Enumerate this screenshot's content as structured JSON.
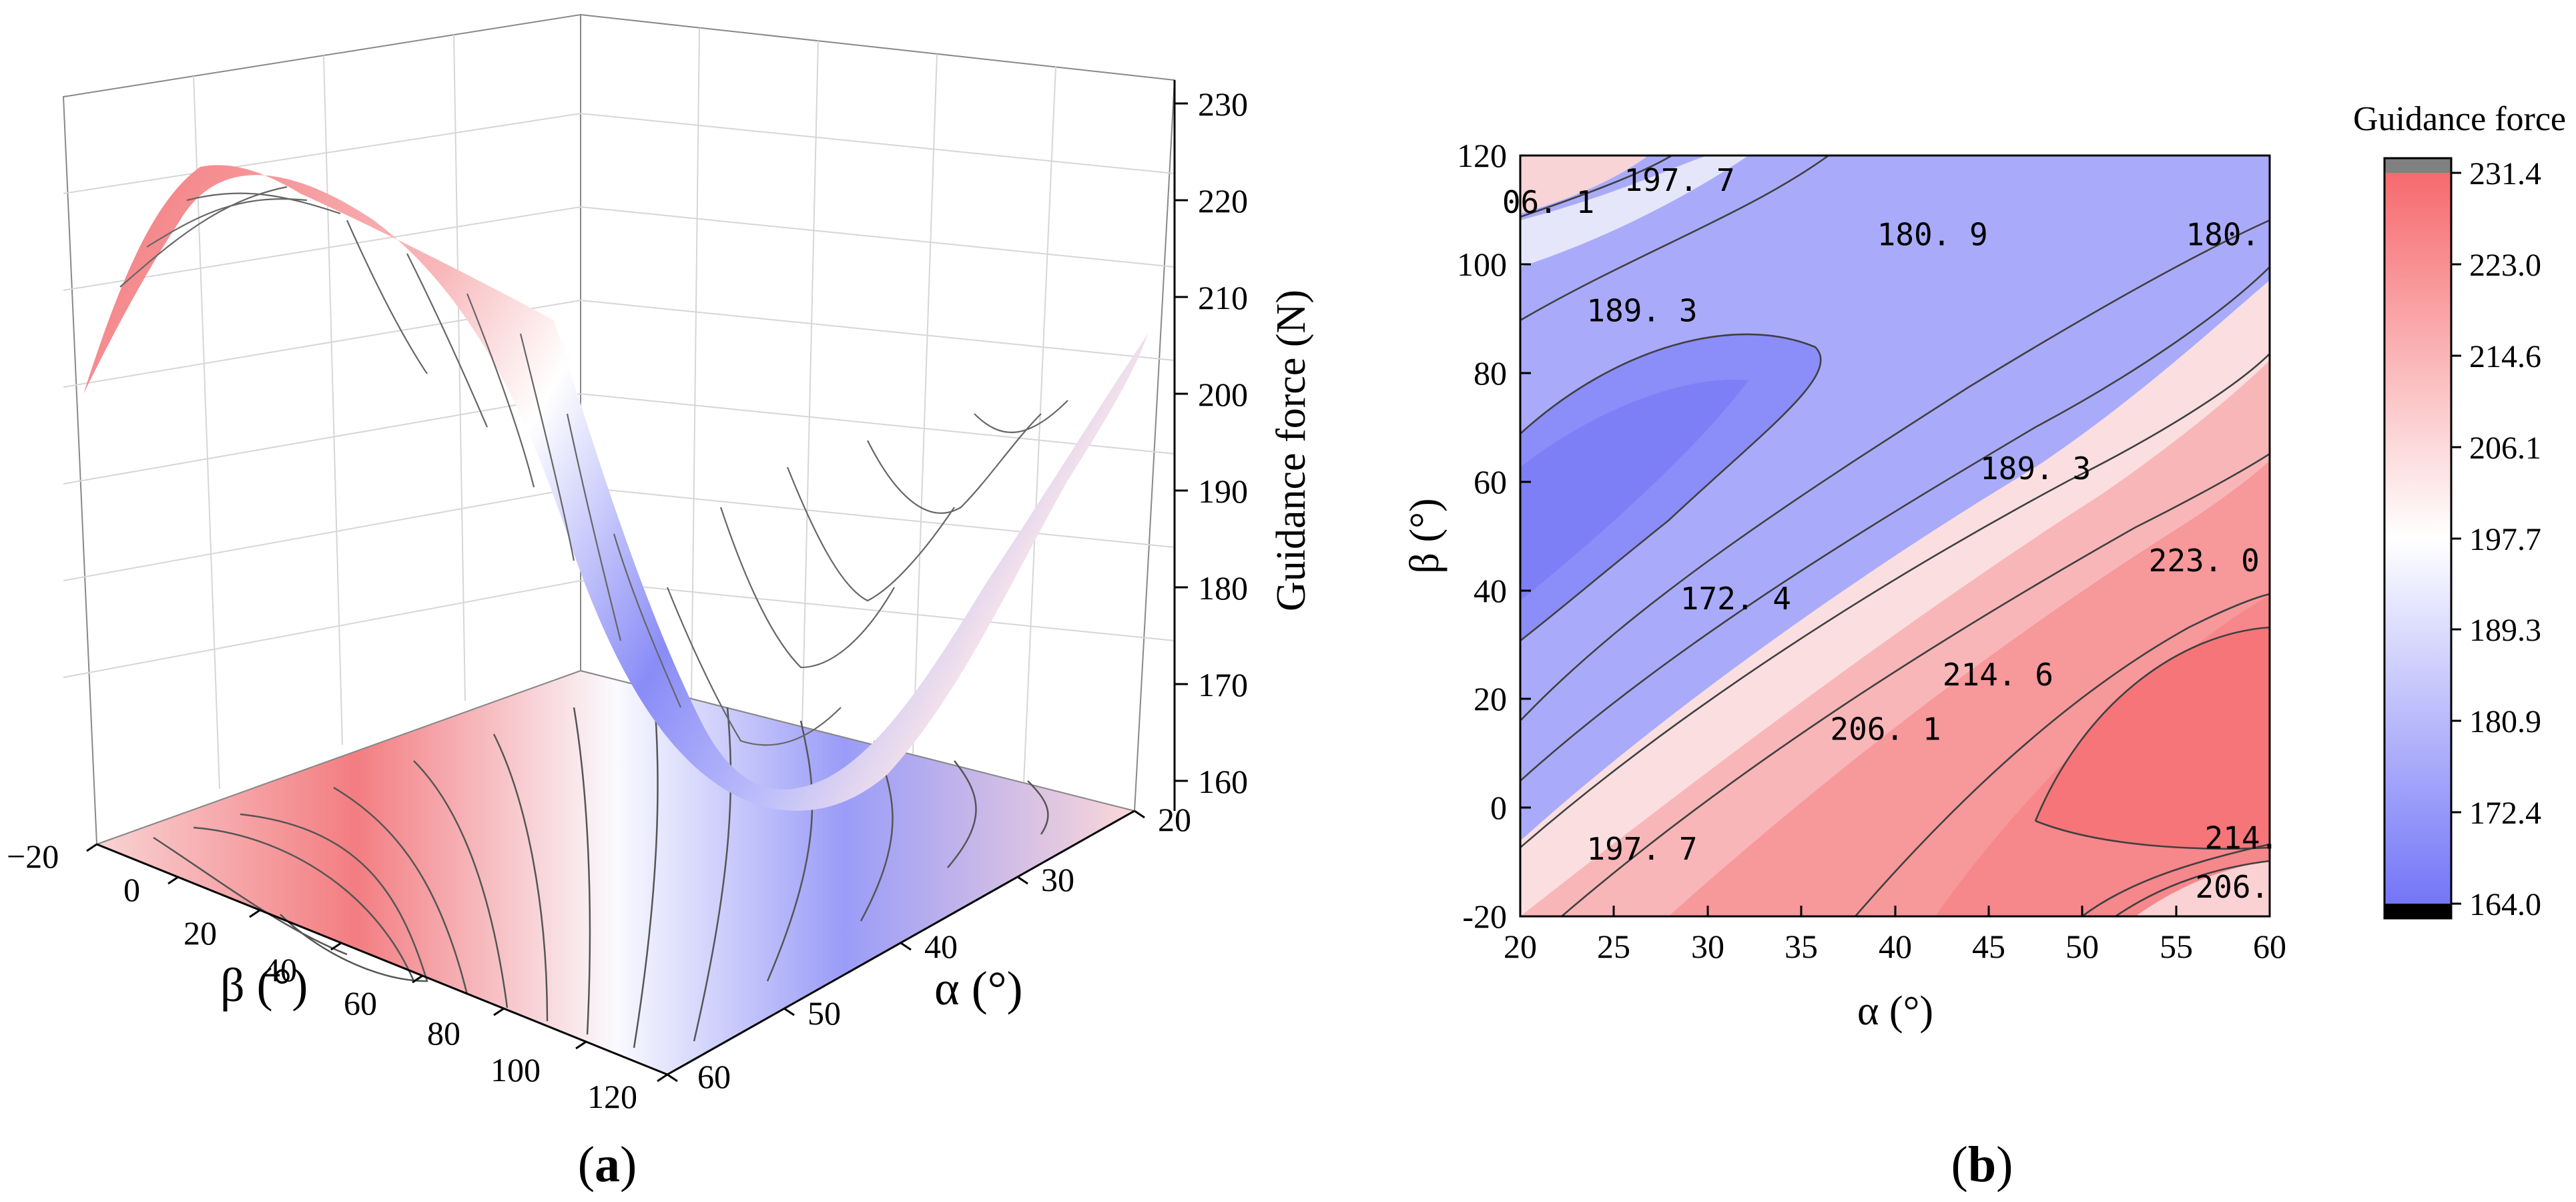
{
  "chart_data": [
    {
      "panel": "a",
      "type": "surface3d",
      "caption": "a",
      "xlabel": "β (°)",
      "ylabel": "α (°)",
      "zlabel": "Guidance force (N)",
      "beta_ticks": [
        "−20",
        "0",
        "20",
        "40",
        "60",
        "80",
        "100",
        "120"
      ],
      "alpha_ticks": [
        "20",
        "30",
        "40",
        "50",
        "60"
      ],
      "z_ticks": [
        "160",
        "170",
        "180",
        "190",
        "200",
        "210",
        "220",
        "230"
      ],
      "xlim": [
        -20,
        120
      ],
      "ylim": [
        20,
        60
      ],
      "zlim": [
        160,
        230
      ],
      "surface_min_N": 164.0,
      "surface_max_N": 231.4,
      "projected_contours_on_floor": true
    },
    {
      "panel": "b",
      "type": "contour",
      "caption": "b",
      "xlabel": "α (°)",
      "ylabel": "β (°)",
      "xlim": [
        20,
        60
      ],
      "ylim": [
        -20,
        120
      ],
      "x_ticks": [
        "20",
        "25",
        "30",
        "35",
        "40",
        "45",
        "50",
        "55",
        "60"
      ],
      "y_ticks": [
        "-20",
        "0",
        "20",
        "40",
        "60",
        "80",
        "100",
        "120"
      ],
      "contour_levels": [
        172.4,
        180.9,
        189.3,
        197.7,
        206.1,
        214.6,
        223.0
      ],
      "contour_labels": [
        {
          "text": "06. 1",
          "alpha": 21.5,
          "beta": 111
        },
        {
          "text": "197. 7",
          "alpha": 28.5,
          "beta": 115
        },
        {
          "text": "180. 9",
          "alpha": 42,
          "beta": 105
        },
        {
          "text": "180.",
          "alpha": 57.5,
          "beta": 105
        },
        {
          "text": "189. 3",
          "alpha": 26.5,
          "beta": 91
        },
        {
          "text": "189. 3",
          "alpha": 47.5,
          "beta": 62
        },
        {
          "text": "172. 4",
          "alpha": 31.5,
          "beta": 38
        },
        {
          "text": "223. 0",
          "alpha": 56.5,
          "beta": 45
        },
        {
          "text": "214. 6",
          "alpha": 45.5,
          "beta": 24
        },
        {
          "text": "206. 1",
          "alpha": 39.5,
          "beta": 14
        },
        {
          "text": "197. 7",
          "alpha": 26.5,
          "beta": -8
        },
        {
          "text": "214.",
          "alpha": 58.5,
          "beta": -6
        },
        {
          "text": "206.",
          "alpha": 58,
          "beta": -15
        }
      ],
      "colorbar": {
        "title": "Guidance force",
        "ticks": [
          "231.4",
          "223.0",
          "214.6",
          "206.1",
          "197.7",
          "189.3",
          "180.9",
          "172.4",
          "164.0"
        ],
        "colors": {
          "low": "#7375f7",
          "mid": "#ffffff",
          "high": "#f66a6e",
          "over": "#808080",
          "under": "#000000"
        }
      }
    }
  ],
  "colors": {
    "low": "#7375f7",
    "mid": "#ffffff",
    "high": "#f66a6e",
    "axis": "#000000",
    "grid": "#d6d6d6",
    "contour": "#404040"
  }
}
